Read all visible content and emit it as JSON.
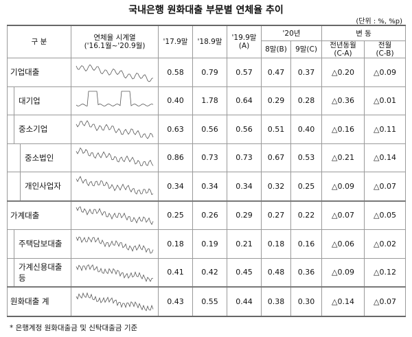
{
  "title": "국내은행 원화대출 부문별 연체율 추이",
  "unit": "(단위 : %, %p)",
  "header": {
    "category": "구 분",
    "series_line1": "연체율 시계열",
    "series_line2": "('16.1월~'20.9월)",
    "c1": "'17.9말",
    "c2": "'18.9말",
    "c3_line1": "'19.9말",
    "c3_line2": "(A)",
    "year": "'20년",
    "c4": "8말(B)",
    "c5": "9말(C)",
    "change": "변 동",
    "c6_line1": "전년동월",
    "c6_line2": "(C-A)",
    "c7_line1": "전월",
    "c7_line2": "(C-B)"
  },
  "table": {
    "rows": [
      {
        "label": "기업대출",
        "values": [
          "0.58",
          "0.79",
          "0.57",
          "0.47",
          "0.37",
          "△0.20",
          "△0.09"
        ]
      },
      {
        "label": "대기업",
        "values": [
          "0.40",
          "1.78",
          "0.64",
          "0.29",
          "0.28",
          "△0.36",
          "△0.01"
        ]
      },
      {
        "label": "중소기업",
        "values": [
          "0.63",
          "0.56",
          "0.56",
          "0.51",
          "0.40",
          "△0.16",
          "△0.11"
        ]
      },
      {
        "label": "중소법인",
        "values": [
          "0.86",
          "0.73",
          "0.73",
          "0.67",
          "0.53",
          "△0.21",
          "△0.14"
        ]
      },
      {
        "label": "개인사업자",
        "values": [
          "0.34",
          "0.34",
          "0.34",
          "0.32",
          "0.25",
          "△0.09",
          "△0.07"
        ]
      },
      {
        "label": "가계대출",
        "values": [
          "0.25",
          "0.26",
          "0.29",
          "0.27",
          "0.22",
          "△0.07",
          "△0.05"
        ]
      },
      {
        "label": "주택담보대출",
        "values": [
          "0.18",
          "0.19",
          "0.21",
          "0.18",
          "0.16",
          "△0.06",
          "△0.02"
        ]
      },
      {
        "label": "가계신용대출 등",
        "values": [
          "0.41",
          "0.42",
          "0.45",
          "0.48",
          "0.36",
          "△0.09",
          "△0.12"
        ]
      },
      {
        "label": "원화대출 계",
        "values": [
          "0.43",
          "0.55",
          "0.44",
          "0.38",
          "0.30",
          "△0.14",
          "△0.07"
        ]
      }
    ]
  },
  "footnote": "* 은행계정 원화대출금 및 신탁대출금 기준"
}
